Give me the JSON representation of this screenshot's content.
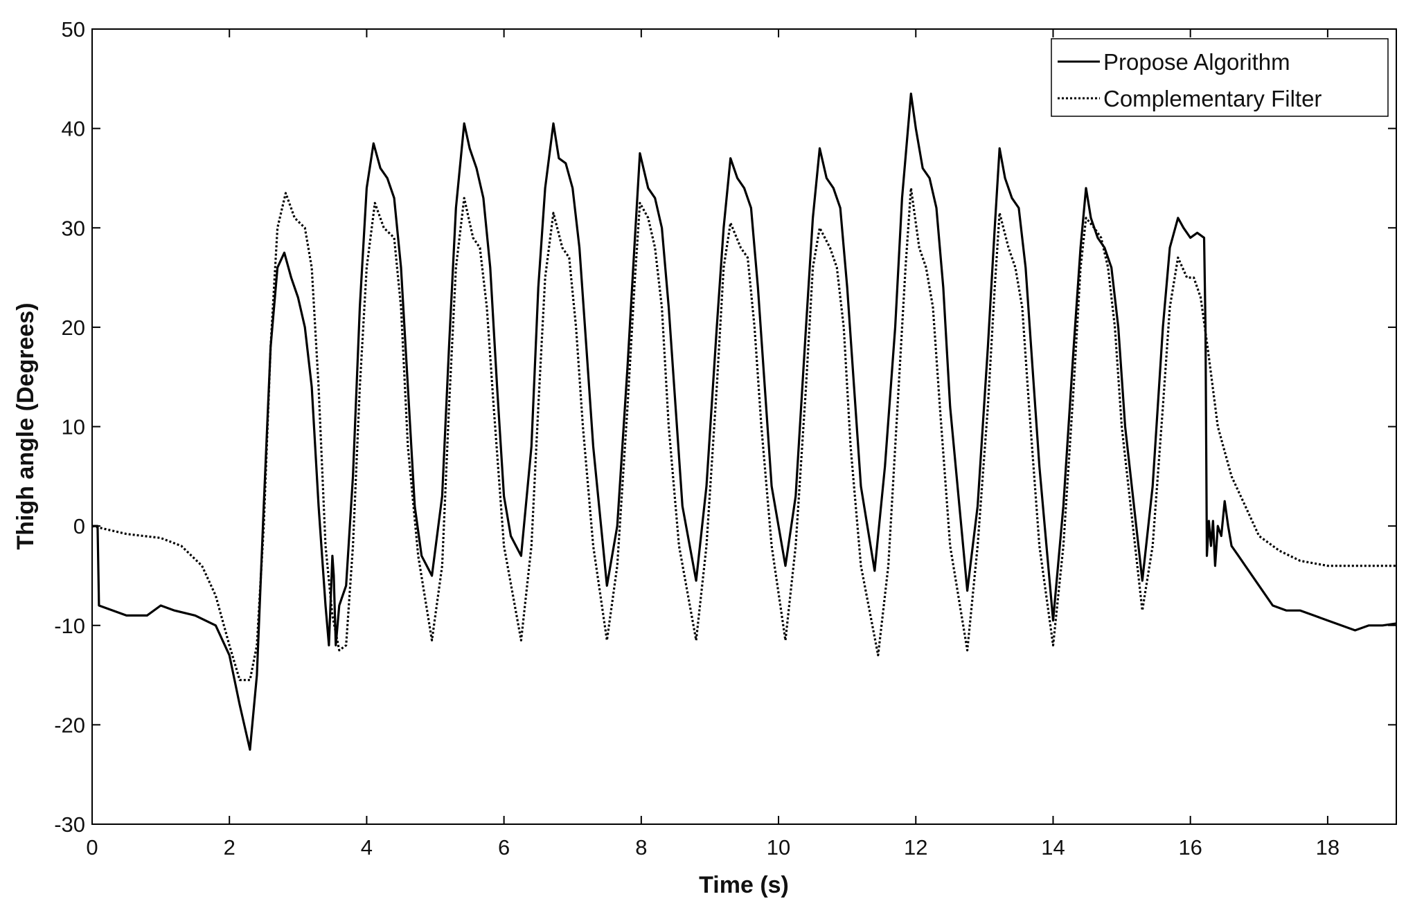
{
  "chart_data": {
    "type": "line",
    "title": "",
    "xlabel": "Time (s)",
    "ylabel": "Thigh angle (Degrees)",
    "xlim": [
      0,
      19
    ],
    "ylim": [
      -30,
      50
    ],
    "xticks": [
      0,
      2,
      4,
      6,
      8,
      10,
      12,
      14,
      16,
      18
    ],
    "yticks": [
      -30,
      -20,
      -10,
      0,
      10,
      20,
      30,
      40,
      50
    ],
    "grid": false,
    "legend_position": "top-right",
    "series": [
      {
        "name": "Propose Algorithm",
        "style": "solid",
        "color": "#000000",
        "x": [
          0,
          0.08,
          0.1,
          0.5,
          0.8,
          1.0,
          1.2,
          1.5,
          1.8,
          2.0,
          2.15,
          2.3,
          2.4,
          2.5,
          2.6,
          2.7,
          2.8,
          2.9,
          3.0,
          3.1,
          3.2,
          3.3,
          3.4,
          3.45,
          3.5,
          3.52,
          3.55,
          3.6,
          3.65,
          3.7,
          3.8,
          3.9,
          4.0,
          4.1,
          4.2,
          4.3,
          4.4,
          4.5,
          4.6,
          4.7,
          4.8,
          4.95,
          5.1,
          5.2,
          5.3,
          5.42,
          5.5,
          5.6,
          5.7,
          5.8,
          5.9,
          6.0,
          6.1,
          6.25,
          6.4,
          6.5,
          6.6,
          6.72,
          6.8,
          6.9,
          7.0,
          7.1,
          7.2,
          7.3,
          7.5,
          7.65,
          7.8,
          7.9,
          7.98,
          8.1,
          8.2,
          8.3,
          8.4,
          8.5,
          8.6,
          8.8,
          8.95,
          9.1,
          9.2,
          9.3,
          9.4,
          9.5,
          9.6,
          9.7,
          9.8,
          9.9,
          10.1,
          10.25,
          10.4,
          10.5,
          10.6,
          10.7,
          10.8,
          10.9,
          11.0,
          11.1,
          11.2,
          11.4,
          11.55,
          11.7,
          11.8,
          11.93,
          12.0,
          12.1,
          12.2,
          12.3,
          12.4,
          12.5,
          12.75,
          12.9,
          13.05,
          13.15,
          13.22,
          13.3,
          13.4,
          13.5,
          13.6,
          13.7,
          13.8,
          14.0,
          14.15,
          14.3,
          14.4,
          14.48,
          14.55,
          14.65,
          14.75,
          14.85,
          14.95,
          15.05,
          15.3,
          15.45,
          15.6,
          15.7,
          15.82,
          15.9,
          16.0,
          16.1,
          16.2,
          16.22,
          16.24,
          16.27,
          16.3,
          16.33,
          16.36,
          16.4,
          16.45,
          16.5,
          16.55,
          16.6,
          16.7,
          16.8,
          17.0,
          17.2,
          17.4,
          17.6,
          17.8,
          18.0,
          18.2,
          18.4,
          18.6,
          18.8,
          19.0
        ],
        "y": [
          0,
          0,
          -8,
          -9,
          -9,
          -8,
          -8.5,
          -9,
          -10,
          -13,
          -18,
          -22.5,
          -15,
          2,
          18,
          26,
          27.5,
          25,
          23,
          20,
          14,
          2,
          -8,
          -12,
          -3,
          -5,
          -12,
          -8,
          -7,
          -6,
          5,
          22,
          34,
          38.5,
          36,
          35,
          33,
          26,
          14,
          2,
          -3,
          -5,
          3,
          18,
          32,
          40.5,
          38,
          36,
          33,
          26,
          14,
          3,
          -1,
          -3,
          8,
          24,
          34,
          40.5,
          37,
          36.5,
          34,
          28,
          18,
          8,
          -6,
          0,
          16,
          28,
          37.5,
          34,
          33,
          30,
          22,
          12,
          2,
          -5.5,
          4,
          20,
          30,
          37,
          35,
          34,
          32,
          24,
          14,
          4,
          -4,
          3,
          20,
          31,
          38,
          35,
          34,
          32,
          24,
          14,
          4,
          -4.5,
          6,
          20,
          33,
          43.5,
          40,
          36,
          35,
          32,
          24,
          12,
          -6.5,
          2,
          18,
          30,
          38,
          35,
          33,
          32,
          26,
          16,
          6,
          -9.5,
          2,
          18,
          28,
          34,
          31,
          29,
          28,
          26,
          20,
          10,
          -5.5,
          4,
          20,
          28,
          31,
          30,
          29,
          29.5,
          29,
          20,
          -3,
          0.5,
          -2,
          0.5,
          -4,
          0,
          -1,
          2.5,
          0,
          -2,
          -3,
          -4,
          -6,
          -8,
          -8.5,
          -8.5,
          -9,
          -9.5,
          -10,
          -10.5,
          -10,
          -10,
          -9.8
        ]
      },
      {
        "name": "Complementary Filter",
        "style": "dotted",
        "color": "#000000",
        "x": [
          0,
          0.5,
          1.0,
          1.3,
          1.6,
          1.8,
          2.0,
          2.15,
          2.3,
          2.4,
          2.5,
          2.6,
          2.7,
          2.82,
          2.95,
          3.1,
          3.2,
          3.3,
          3.4,
          3.5,
          3.6,
          3.7,
          3.8,
          3.9,
          4.0,
          4.12,
          4.25,
          4.4,
          4.5,
          4.6,
          4.75,
          4.95,
          5.1,
          5.2,
          5.3,
          5.42,
          5.55,
          5.65,
          5.75,
          5.85,
          6.0,
          6.25,
          6.4,
          6.5,
          6.6,
          6.72,
          6.85,
          6.95,
          7.05,
          7.15,
          7.3,
          7.5,
          7.65,
          7.8,
          7.9,
          7.98,
          8.1,
          8.2,
          8.3,
          8.4,
          8.55,
          8.8,
          8.95,
          9.1,
          9.2,
          9.3,
          9.45,
          9.55,
          9.65,
          9.75,
          9.9,
          10.1,
          10.25,
          10.4,
          10.5,
          10.6,
          10.75,
          10.85,
          10.95,
          11.05,
          11.2,
          11.45,
          11.6,
          11.75,
          11.85,
          11.93,
          12.05,
          12.15,
          12.25,
          12.35,
          12.5,
          12.75,
          12.9,
          13.05,
          13.15,
          13.22,
          13.35,
          13.45,
          13.55,
          13.65,
          13.8,
          14.0,
          14.15,
          14.3,
          14.4,
          14.48,
          14.6,
          14.7,
          14.8,
          14.9,
          15.0,
          15.3,
          15.45,
          15.6,
          15.7,
          15.82,
          15.95,
          16.05,
          16.15,
          16.25,
          16.4,
          16.6,
          16.8,
          17.0,
          17.3,
          17.6,
          18.0,
          18.4,
          18.8,
          19.0
        ],
        "y": [
          0,
          -0.8,
          -1.2,
          -2,
          -4,
          -7,
          -12,
          -15.5,
          -15.5,
          -12,
          0,
          18,
          30,
          33.5,
          31,
          30,
          26,
          14,
          -2,
          -9,
          -12.5,
          -12,
          -2,
          14,
          26,
          32.5,
          30,
          29,
          22,
          8,
          -3,
          -11.5,
          -4,
          12,
          26,
          33,
          29,
          28,
          22,
          12,
          -2,
          -11.5,
          -2,
          12,
          25,
          31.5,
          28,
          27,
          20,
          10,
          -2,
          -11.5,
          -4,
          12,
          24,
          32.5,
          31,
          28,
          22,
          10,
          -2,
          -11.5,
          -2,
          14,
          26,
          30.5,
          28,
          27,
          20,
          10,
          -2,
          -11.5,
          -2,
          14,
          26,
          30,
          28,
          26,
          20,
          8,
          -4,
          -13,
          -4,
          14,
          26,
          34,
          28,
          26,
          22,
          12,
          -2,
          -12.5,
          -2,
          12,
          24,
          31.5,
          28,
          26,
          22,
          12,
          -2,
          -12,
          -2,
          14,
          26,
          31,
          30,
          29,
          26,
          20,
          10,
          -8.5,
          -2,
          12,
          22,
          27,
          25,
          25,
          23,
          18,
          10,
          5,
          2,
          -1,
          -2.5,
          -3.5,
          -4,
          -4,
          -4,
          -4
        ]
      }
    ]
  }
}
